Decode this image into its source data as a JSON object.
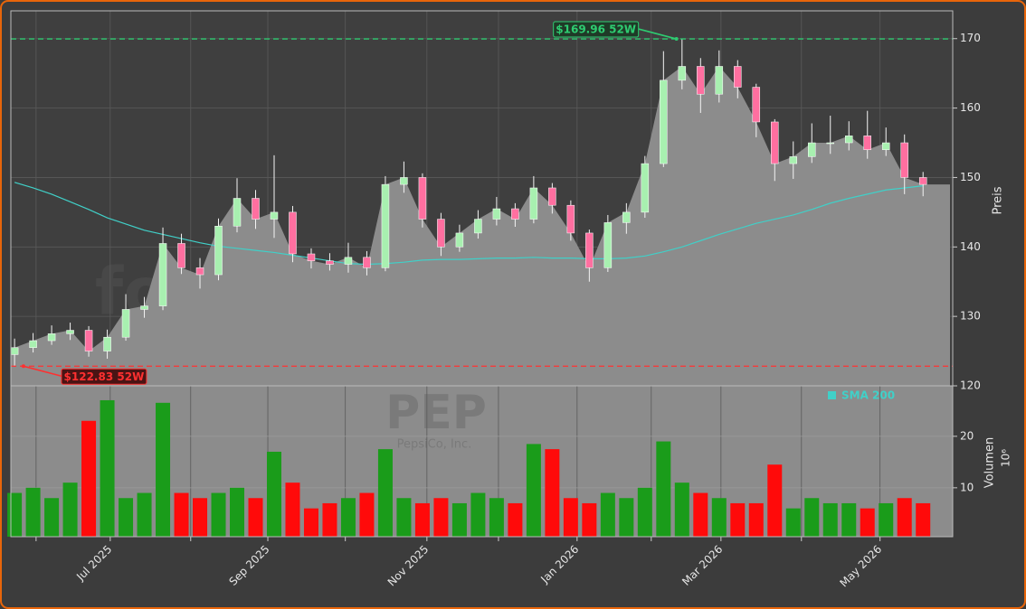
{
  "chart_data": [
    {
      "type": "candlestick",
      "watermark": "forexsignale.trade",
      "y_label": "Preis",
      "xlim": [
        0,
        254
      ],
      "ylim": [
        120,
        174
      ],
      "yticks": [
        120,
        130,
        140,
        150,
        160,
        170
      ],
      "grid": true,
      "up_color": "#a8f0b0",
      "down_color": "#ff6fa0",
      "area_color": "#8c8c8c",
      "x": [
        1,
        6,
        11,
        16,
        21,
        26,
        31,
        36,
        41,
        46,
        51,
        56,
        61,
        66,
        71,
        76,
        81,
        86,
        91,
        96,
        101,
        106,
        111,
        116,
        121,
        126,
        131,
        136,
        141,
        146,
        151,
        156,
        161,
        166,
        171,
        176,
        181,
        186,
        191,
        196,
        201,
        206,
        211,
        216,
        221,
        226,
        231,
        236,
        241,
        246
      ],
      "open": [
        124.5,
        125.5,
        126.5,
        127.5,
        128,
        125,
        127,
        131,
        131.5,
        140.5,
        137,
        136,
        143,
        147,
        144,
        145,
        139,
        138,
        137.5,
        138.5,
        137,
        149,
        150,
        144,
        140,
        142,
        144,
        145.5,
        144,
        148.5,
        146,
        142,
        137,
        143.5,
        145,
        152,
        164,
        166,
        162,
        166,
        163,
        158,
        152,
        153,
        155,
        155,
        156,
        154,
        155,
        150
      ],
      "high": [
        126.8,
        127.6,
        128.7,
        129.1,
        128.6,
        128.1,
        133.2,
        132.8,
        142.8,
        141.9,
        138.4,
        144.1,
        149.9,
        148.2,
        153.2,
        145.9,
        139.8,
        139.1,
        140.6,
        139.4,
        150.2,
        152.3,
        150.6,
        144.9,
        143.2,
        145.3,
        147.2,
        146.3,
        150.2,
        149.2,
        146.7,
        142.5,
        144.6,
        146.3,
        153.1,
        168.2,
        169.96,
        167.2,
        168.3,
        166.9,
        163.5,
        158.4,
        155.2,
        157.8,
        158.9,
        158.1,
        159.6,
        157.2,
        156.2,
        150.8
      ],
      "low": [
        122.83,
        124.8,
        125.9,
        126.6,
        124.2,
        123.9,
        126.5,
        129.8,
        130.9,
        136.1,
        134,
        135.2,
        142.1,
        142.6,
        141.3,
        137.8,
        136.9,
        136.6,
        136.3,
        135.9,
        136.5,
        147.8,
        142.8,
        138.7,
        139.3,
        141.2,
        143.1,
        142.9,
        143.4,
        144.8,
        140.9,
        135,
        136.4,
        141.9,
        144.2,
        151.5,
        162.7,
        159.3,
        160.8,
        161.4,
        155.8,
        149.5,
        149.8,
        152.1,
        153.4,
        153.9,
        152.7,
        153.1,
        147.6,
        147.3
      ],
      "close": [
        125.5,
        126.5,
        127.5,
        128,
        125,
        127,
        131,
        131.5,
        140.5,
        137,
        136,
        143,
        147,
        144,
        145,
        139,
        138,
        137.5,
        138.5,
        137,
        149,
        150,
        144,
        140,
        142,
        144,
        145.5,
        144,
        148.5,
        146,
        142,
        137,
        143.5,
        145,
        152,
        164,
        166,
        162,
        166,
        163,
        158,
        152,
        153,
        155,
        155,
        156,
        154,
        155,
        150,
        149
      ],
      "series": [
        {
          "name": "SMA 200",
          "color": "#40d0c8",
          "values": [
            149.3,
            148.5,
            147.6,
            146.5,
            145.4,
            144.2,
            143.3,
            142.4,
            141.8,
            141.2,
            140.6,
            140.1,
            139.8,
            139.5,
            139.2,
            138.8,
            138.4,
            138,
            137.6,
            137.5,
            137.6,
            137.8,
            138.1,
            138.2,
            138.2,
            138.3,
            138.4,
            138.4,
            138.5,
            138.4,
            138.4,
            138.3,
            138.3,
            138.4,
            138.7,
            139.3,
            140,
            140.9,
            141.8,
            142.6,
            143.4,
            144,
            144.6,
            145.4,
            146.3,
            147,
            147.6,
            148.2,
            148.5,
            148.8
          ]
        }
      ],
      "annotations": [
        {
          "text": "$169.96 52W",
          "value": 169.96,
          "x": 179.5,
          "color": "#2ecc71"
        },
        {
          "text": "$122.83 52W",
          "value": 122.83,
          "x": 3.4,
          "color": "#ff3030"
        }
      ]
    },
    {
      "type": "bar",
      "symbol": "PEP",
      "company": "PepsiCo, Inc.",
      "y_label": "Volumen",
      "y_unit": "10⁶",
      "xlim": [
        0,
        254
      ],
      "ylim": [
        0.5,
        29.8
      ],
      "yticks": [
        10,
        20
      ],
      "grid": true,
      "up_color": "#1a9c1a",
      "down_color": "#ff0a0a",
      "values": [
        9,
        10,
        8,
        11,
        23,
        27,
        8,
        9,
        26.5,
        9,
        8,
        9,
        10,
        8,
        17,
        11,
        6,
        7,
        8,
        9,
        17.5,
        8,
        7,
        8,
        7,
        9,
        8,
        7,
        18.5,
        17.5,
        8,
        7,
        9,
        8,
        10,
        19,
        11,
        9,
        8,
        7,
        7,
        14.5,
        6,
        8,
        7,
        7,
        6,
        7,
        8,
        7
      ],
      "xticks": [
        {
          "value": 6.8,
          "label": null
        },
        {
          "value": 26.8,
          "label": "Jul 2025"
        },
        {
          "value": 48.5,
          "label": null
        },
        {
          "value": 69.3,
          "label": "Sep 2025"
        },
        {
          "value": 90.2,
          "label": null
        },
        {
          "value": 112.2,
          "label": "Nov 2025"
        },
        {
          "value": 131.5,
          "label": null
        },
        {
          "value": 152.7,
          "label": "Jan 2026"
        },
        {
          "value": 172.7,
          "label": null
        },
        {
          "value": 191.5,
          "label": "Mar 2026"
        },
        {
          "value": 213.2,
          "label": null
        },
        {
          "value": 234.4,
          "label": "May 2026"
        }
      ]
    }
  ]
}
